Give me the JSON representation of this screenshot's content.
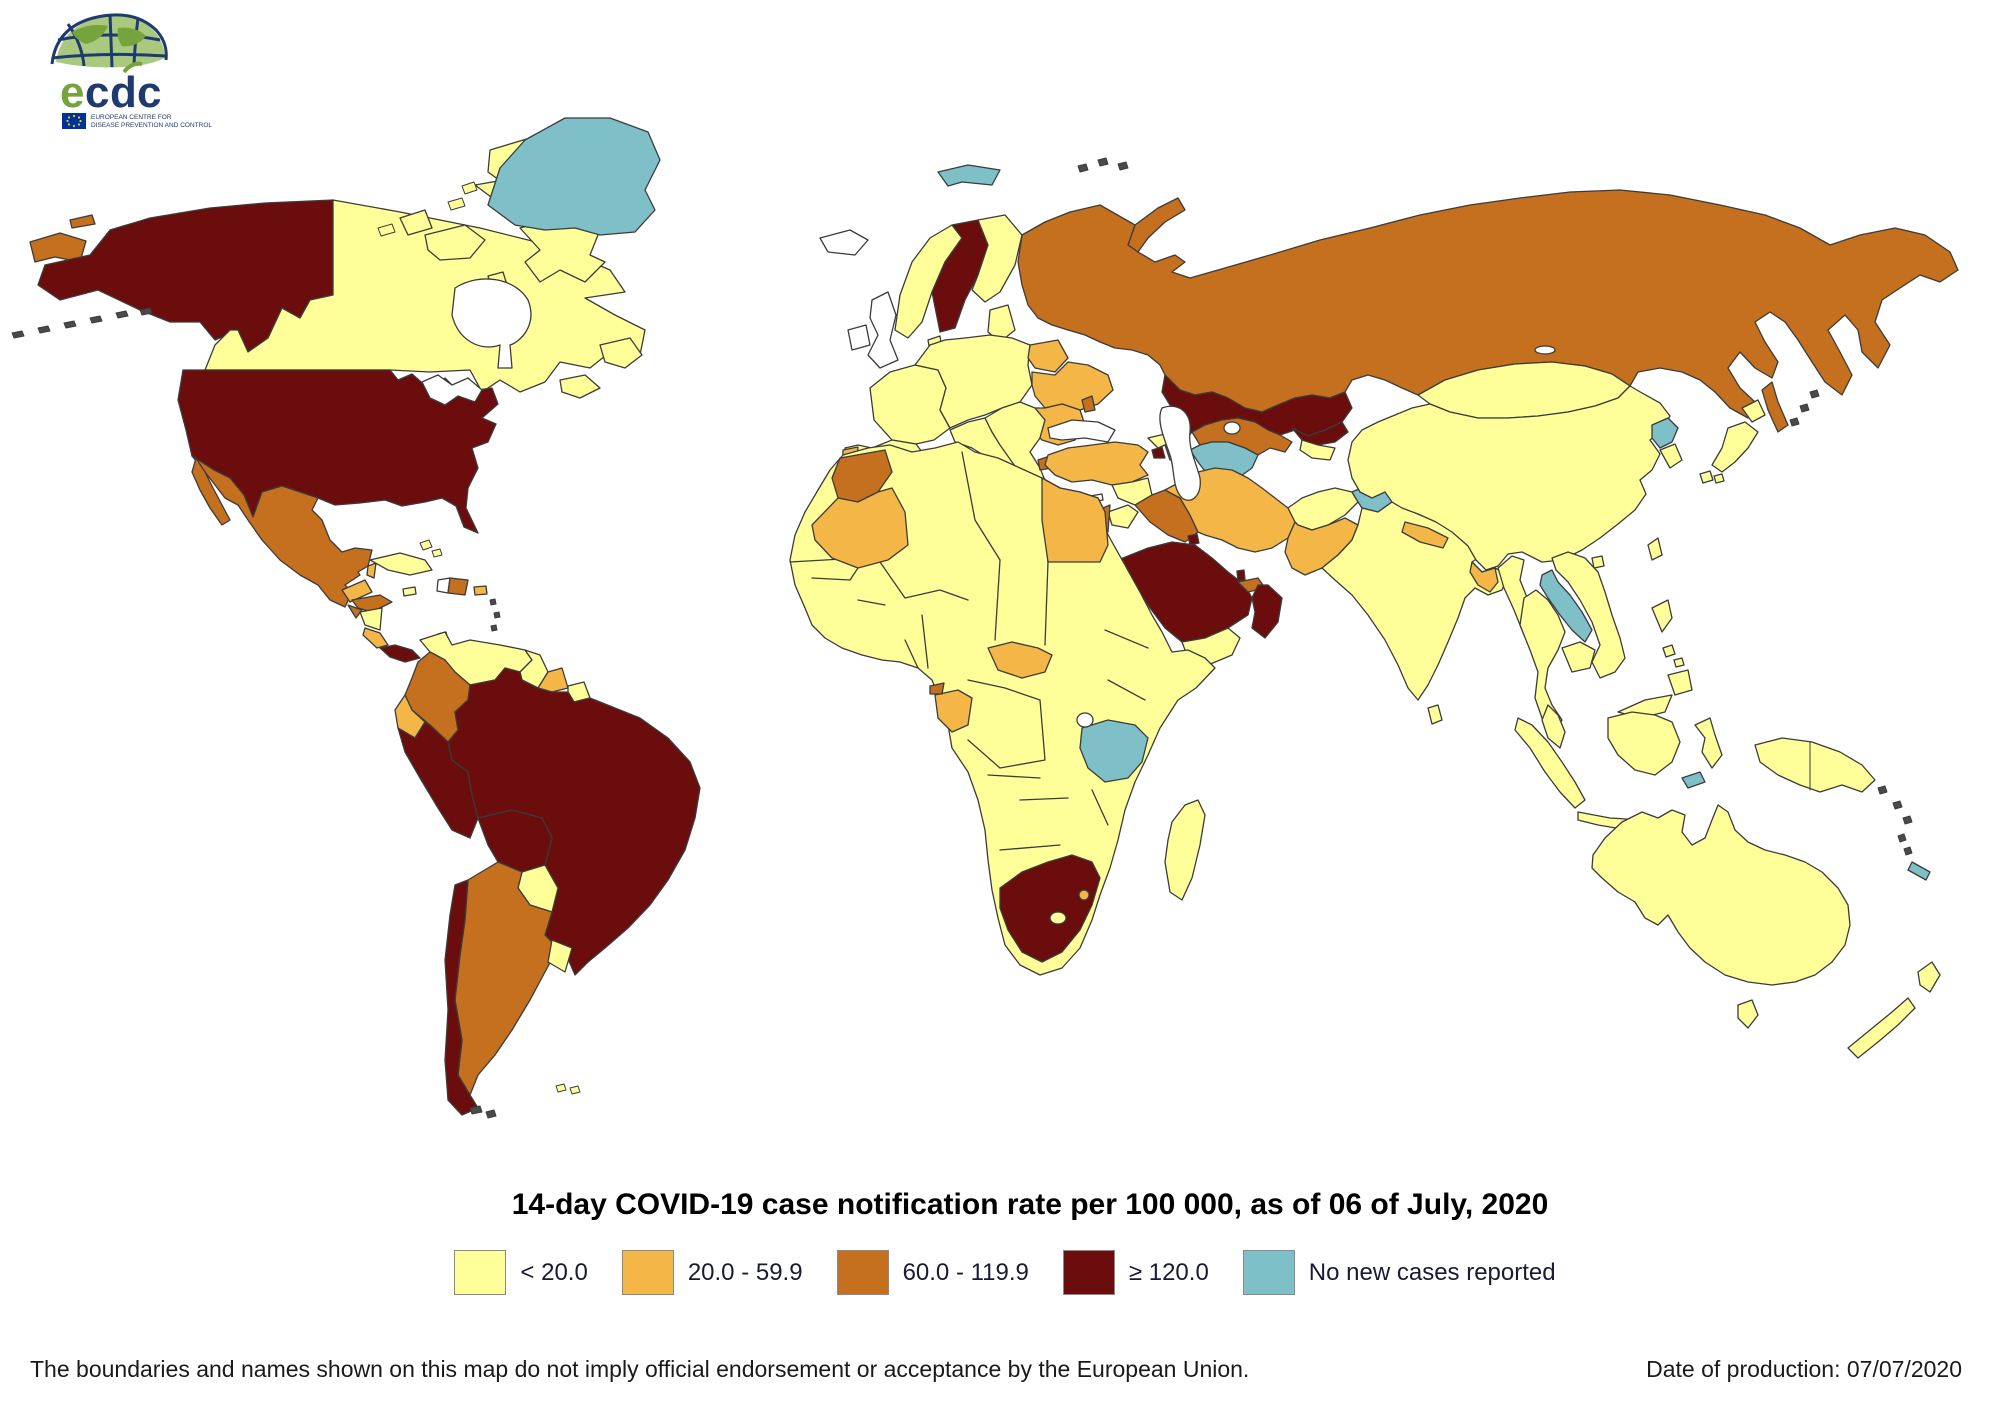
{
  "title": "14-day COVID-19 case notification rate per 100 000, as of 06 of July, 2020",
  "logo": {
    "wordmark_e": "e",
    "wordmark_c1": "c",
    "wordmark_d": "d",
    "wordmark_c2": "c",
    "subtext_line1": "EUROPEAN CENTRE FOR",
    "subtext_line2": "DISEASE PREVENTION AND CONTROL",
    "green": "#76A33C",
    "navy": "#1E3A6E",
    "flag_blue": "#003399",
    "flag_star": "#FFCC00"
  },
  "legend": [
    {
      "key": "lt20",
      "label": "< 20.0"
    },
    {
      "key": "c20_59",
      "label": "20.0 - 59.9"
    },
    {
      "key": "c60_119",
      "label": "60.0 - 119.9"
    },
    {
      "key": "gte120",
      "label": "≥ 120.0"
    },
    {
      "key": "nonew",
      "label": "No new cases reported"
    }
  ],
  "footer": {
    "disclaimer": "The boundaries and names shown on this map do not imply official endorsement or acceptance by the European Union.",
    "production": "Date of production: 07/07/2020"
  },
  "map": {
    "ocean": "#ffffff",
    "border_color": "#3b3b3b",
    "category_colors": {
      "lt20": "#FFFF99",
      "c20_59": "#F4B747",
      "c60_119": "#C4701E",
      "gte120": "#6B0D0D",
      "nonew": "#7FC0C8",
      "nodata": "#FFFFFF",
      "water": "#FFFFFF",
      "outline": "#4a4a4a"
    },
    "regions": {
      "chukotka-west": "c60_119",
      "chukotka-islet": "c60_119",
      "alaska": "gte120",
      "aleutians": "outline",
      "canada": "lt20",
      "newfoundland": "lt20",
      "nova-scotia": "lt20",
      "baffin-island": "lt20",
      "victoria-island": "lt20",
      "ellesmere-island": "lt20",
      "banks-island": "lt20",
      "devon-island": "lt20",
      "southampton-island": "lt20",
      "arctic-islets": "lt20",
      "greenland": "nonew",
      "usa": "gte120",
      "mexico": "c60_119",
      "belize": "c20_59",
      "guatemala": "c20_59",
      "honduras": "c60_119",
      "el-salvador": "c60_119",
      "nicaragua": "lt20",
      "costa-rica": "c20_59",
      "panama": "gte120",
      "cuba": "lt20",
      "bahamas": "lt20",
      "jamaica": "lt20",
      "haiti": "nodata",
      "dominican-republic": "c60_119",
      "puerto-rico": "c20_59",
      "trinidad": "gte120",
      "lesser-antilles": "outline",
      "venezuela": "lt20",
      "colombia": "c60_119",
      "guyana": "lt20",
      "suriname": "c20_59",
      "french-guiana": "lt20",
      "ecuador": "c20_59",
      "peru": "gte120",
      "brazil": "gte120",
      "bolivia": "gte120",
      "paraguay": "lt20",
      "argentina": "c60_119",
      "chile": "gte120",
      "uruguay": "lt20",
      "falklands": "lt20",
      "tierra-islets": "outline",
      "iceland": "nodata",
      "ireland": "nodata",
      "united-kingdom": "nodata",
      "norway": "lt20",
      "sweden": "gte120",
      "finland": "lt20",
      "denmark": "lt20",
      "baltic-states": "lt20",
      "spain": "lt20",
      "portugal": "c20_59",
      "france": "lt20",
      "central-europe": "lt20",
      "italy": "lt20",
      "italian-islands": "lt20",
      "balkans": "lt20",
      "crete": "lt20",
      "belarus": "c20_59",
      "ukraine": "c20_59",
      "romania-bulgaria-serbia": "c20_59",
      "moldova": "c60_119",
      "albania-macedonia": "c60_119",
      "svalbard": "nonew",
      "novaya-zemlya": "c60_119",
      "franz-josef": "outline",
      "russia": "c60_119",
      "sakhalin": "c60_119",
      "kurils": "outline",
      "kazakhstan": "gte120",
      "uzbekistan": "c60_119",
      "turkmenistan": "nonew",
      "kyrgyzstan": "gte120",
      "tajikistan": "lt20",
      "georgia": "lt20",
      "armenia": "gte120",
      "azerbaijan": "c60_119",
      "turkey": "c20_59",
      "cyprus": "nodata",
      "syria": "lt20",
      "iraq": "c60_119",
      "iran": "c20_59",
      "jordan": "lt20",
      "israel": "c60_119",
      "saudi-arabia": "gte120",
      "kuwait": "gte120",
      "qatar": "gte120",
      "uae": "c60_119",
      "oman": "gte120",
      "yemen": "lt20",
      "afghanistan": "lt20",
      "pakistan": "c20_59",
      "kashmir": "nonew",
      "india": "lt20",
      "nepal": "c20_59",
      "bangladesh": "c20_59",
      "sri-lanka": "lt20",
      "china": "lt20",
      "taiwan": "lt20",
      "hainan": "lt20",
      "mongolia": "lt20",
      "north-korea": "nonew",
      "south-korea": "lt20",
      "japan": "lt20",
      "myanmar": "lt20",
      "laos": "nonew",
      "vietnam": "lt20",
      "thailand": "lt20",
      "cambodia": "lt20",
      "malaysia-peninsula": "lt20",
      "malaysia-borneo": "lt20",
      "sumatra": "lt20",
      "java": "lt20",
      "borneo": "lt20",
      "sulawesi": "lt20",
      "philippines": "lt20",
      "timor-leste": "nonew",
      "new-guinea": "lt20",
      "solomons": "outline",
      "australia": "lt20",
      "tasmania": "lt20",
      "new-zealand": "lt20",
      "new-caledonia": "nonew",
      "vanuatu": "outline",
      "africa-base": "lt20",
      "morocco": "c60_119",
      "wsahara-mauritania": "c20_59",
      "egypt": "c20_59",
      "central-african-republic": "c20_59",
      "gabon": "c20_59",
      "equatorial-guinea": "c60_119",
      "tanzania": "nonew",
      "south-africa": "gte120",
      "lesotho": "lt20",
      "eswatini": "c20_59",
      "madagascar": "lt20",
      "hudson-bay": "water",
      "great-lakes": "water",
      "black-sea": "water",
      "caspian-sea": "water",
      "aral-sea": "water",
      "lake-victoria": "water",
      "lake-baikal": "water"
    }
  }
}
